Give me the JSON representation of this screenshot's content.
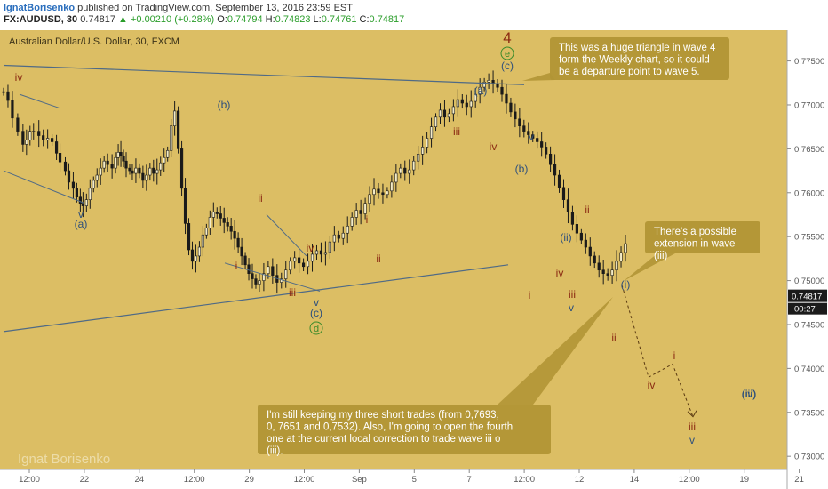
{
  "header": {
    "author": "IgnatBorisenko",
    "published": "published on TradingView.com, September 13, 2016 23:59 EST",
    "symbol": "FX:AUDUSD, 30",
    "last": "0.74817",
    "change": "+0.00210 (+0.28%)",
    "o_label": "O:",
    "o_value": "0.74794",
    "h_label": "H:",
    "h_value": "0.74823",
    "l_label": "L:",
    "l_value": "0.74761",
    "c_label": "C:",
    "c_value": "0.74817"
  },
  "colors": {
    "background": "#dcbe64",
    "candle": "#1a1a1a",
    "trendline": "#4f6a86",
    "callout_fill": "#b19535",
    "callout_text": "#ffffff",
    "wave_blue": "#2d4f7c",
    "wave_red": "#8b2a12",
    "wave_green": "#3a8a2a",
    "watermark": "#efe2b5"
  },
  "chart_data": {
    "type": "candlestick",
    "title": "Australian Dollar/U.S. Dollar, 30, FXCM",
    "xlabel": "",
    "ylabel": "",
    "x_tick_labels": [
      "12:00",
      "22",
      "24",
      "12:00",
      "29",
      "12:00",
      "Sep",
      "5",
      "7",
      "12:00",
      "12",
      "14",
      "12:00",
      "19",
      "21"
    ],
    "y_ticks": [
      0.73,
      0.735,
      0.74,
      0.745,
      0.75,
      0.755,
      0.76,
      0.765,
      0.77,
      0.775
    ],
    "y_tick_labels": [
      "0.73000",
      "0.73500",
      "0.74000",
      "0.74500",
      "0.75000",
      "0.75500",
      "0.76000",
      "0.76500",
      "0.77000",
      "0.77500"
    ],
    "ylim": [
      0.7285,
      0.7785
    ],
    "last_price_label": "0.74817",
    "countdown_label": "00:27",
    "price_path_x": [
      0,
      0.05,
      0.1,
      0.16,
      0.22,
      0.26,
      0.3,
      0.34,
      0.4,
      0.45,
      0.5,
      0.55,
      0.6,
      0.64,
      0.7,
      0.74,
      0.79,
      0.83,
      0.87,
      0.9,
      0.94,
      0.98,
      1.02,
      1.06,
      1.1,
      1.14,
      1.18,
      1.23,
      1.27,
      1.3,
      1.33,
      1.36,
      1.39,
      1.43,
      1.46,
      1.5,
      1.54,
      1.58,
      1.62,
      1.66,
      1.7,
      1.74,
      1.78,
      1.82,
      1.86,
      1.9,
      1.94,
      1.98,
      2.02,
      2.06,
      2.1,
      2.14,
      2.18,
      2.22,
      2.26,
      2.3,
      2.34,
      2.38,
      2.42,
      2.46,
      2.5,
      2.54,
      2.58,
      2.62,
      2.66,
      2.7,
      2.74,
      2.78,
      2.82,
      2.86,
      2.9,
      2.95,
      3.0,
      3.05,
      3.1,
      3.15,
      3.2,
      3.25,
      3.3,
      3.35,
      3.4,
      3.45,
      3.5,
      3.55,
      3.6,
      3.65,
      3.7,
      3.75,
      3.8,
      3.85,
      3.9,
      3.95,
      4.0,
      4.05,
      4.1,
      4.15,
      4.2,
      4.25,
      4.3,
      4.35,
      4.4,
      4.45,
      4.5,
      4.55,
      4.6,
      4.65,
      4.7,
      4.75,
      4.8,
      4.85,
      4.9,
      4.95,
      5.0,
      5.05,
      5.1,
      5.15,
      5.2,
      5.25,
      5.3,
      5.35,
      5.4,
      5.45,
      5.5,
      5.55,
      5.6,
      5.65,
      5.7,
      5.75,
      5.8,
      5.85,
      5.9,
      5.95,
      6.0,
      6.05,
      6.1,
      6.15,
      6.2,
      6.25,
      6.3,
      6.35,
      6.4,
      6.45,
      6.5,
      6.55,
      6.6,
      6.65,
      6.7,
      6.75,
      6.8,
      6.85,
      6.9,
      6.95,
      7.0,
      7.05,
      7.1,
      7.15,
      7.2,
      7.25,
      7.3,
      7.35,
      7.4,
      7.45,
      7.5,
      7.55,
      7.6,
      7.65,
      7.7,
      7.75,
      7.8,
      7.85,
      7.9,
      7.95,
      8.0,
      8.05,
      8.1,
      8.15,
      8.2,
      8.25,
      8.3,
      8.35,
      8.4,
      8.45,
      8.5,
      8.55,
      8.6,
      8.65,
      8.7,
      8.75,
      8.8,
      8.85,
      8.9,
      8.95,
      9.0,
      9.05,
      9.1,
      9.15,
      9.2,
      9.25,
      9.3,
      9.35,
      9.4,
      9.45,
      9.5,
      9.55,
      9.6,
      9.65,
      9.7,
      9.75,
      9.8
    ],
    "price_path_y": [
      0.7715,
      0.7705,
      0.7685,
      0.767,
      0.7655,
      0.766,
      0.767,
      0.767,
      0.7665,
      0.766,
      0.7662,
      0.7658,
      0.7645,
      0.7635,
      0.7625,
      0.7612,
      0.7605,
      0.7595,
      0.7588,
      0.7585,
      0.7592,
      0.7605,
      0.7614,
      0.762,
      0.7628,
      0.7636,
      0.7632,
      0.7628,
      0.764,
      0.7646,
      0.7642,
      0.7636,
      0.7628,
      0.7625,
      0.7622,
      0.7628,
      0.7622,
      0.7614,
      0.762,
      0.7628,
      0.7622,
      0.7626,
      0.7634,
      0.764,
      0.7648,
      0.7676,
      0.7693,
      0.765,
      0.7605,
      0.7565,
      0.7535,
      0.7522,
      0.7528,
      0.7538,
      0.7552,
      0.756,
      0.7572,
      0.7578,
      0.7576,
      0.7571,
      0.7566,
      0.7562,
      0.7556,
      0.7548,
      0.7538,
      0.7528,
      0.7518,
      0.7508,
      0.7502,
      0.7496,
      0.75,
      0.7508,
      0.7516,
      0.7506,
      0.7498,
      0.7502,
      0.7512,
      0.7522,
      0.7526,
      0.752,
      0.7516,
      0.7522,
      0.753,
      0.7534,
      0.753,
      0.7532,
      0.7544,
      0.7552,
      0.7548,
      0.7554,
      0.7562,
      0.7572,
      0.758,
      0.7576,
      0.7588,
      0.7598,
      0.7604,
      0.76,
      0.7598,
      0.7602,
      0.7612,
      0.7622,
      0.7628,
      0.7622,
      0.7626,
      0.7636,
      0.7644,
      0.7652,
      0.7662,
      0.7675,
      0.7686,
      0.7694,
      0.7686,
      0.769,
      0.7698,
      0.7706,
      0.7702,
      0.7698,
      0.7704,
      0.7712,
      0.772,
      0.7726,
      0.7728,
      0.7724,
      0.772,
      0.7712,
      0.7702,
      0.7692,
      0.7684,
      0.7676,
      0.767,
      0.7666,
      0.7662,
      0.7658,
      0.7652,
      0.7644,
      0.7632,
      0.762,
      0.7606,
      0.7592,
      0.7578,
      0.7564,
      0.7554,
      0.7546,
      0.7538,
      0.7528,
      0.752,
      0.7512,
      0.7508,
      0.7506,
      0.7512,
      0.7522,
      0.7532,
      0.7542,
      0.7552,
      0.756,
      0.7564,
      0.7562,
      0.7556,
      0.7548,
      0.7538,
      0.7526,
      0.7514,
      0.7502,
      0.749,
      0.7478,
      0.7468,
      0.746,
      0.7462,
      0.747,
      0.7476,
      0.7479,
      0.748,
      0.7481,
      0.7482,
      0.7482,
      0.7482,
      0.7482,
      0.7482,
      0.7482,
      0.7482,
      0.7482,
      0.7482,
      0.7482,
      0.7482,
      0.7482,
      0.7482,
      0.7482,
      0.7482,
      0.7482,
      0.7482,
      0.7482,
      0.7482,
      0.7482,
      0.7482,
      0.7482,
      0.7482,
      0.7482,
      0.7482,
      0.7482,
      0.7482,
      0.7482,
      0.7482,
      0.7482,
      0.7482,
      0.7482
    ],
    "projection_y": [
      0.7495,
      0.739,
      0.7405,
      0.7345
    ],
    "grid": false,
    "wave_labels": [
      {
        "text": "4",
        "color": "wave_red",
        "size": "large"
      },
      {
        "text": "e",
        "color": "wave_green",
        "circled": true
      },
      {
        "text": "(c)",
        "color": "wave_blue"
      },
      {
        "text": "iv",
        "color": "wave_red"
      },
      {
        "text": "v",
        "color": "wave_blue"
      },
      {
        "text": "(a)",
        "color": "wave_blue"
      },
      {
        "text": "(b)",
        "color": "wave_blue"
      },
      {
        "text": "ii",
        "color": "wave_red"
      },
      {
        "text": "i",
        "color": "wave_red"
      },
      {
        "text": "iv",
        "color": "wave_red"
      },
      {
        "text": "iii",
        "color": "wave_red"
      },
      {
        "text": "v",
        "color": "wave_blue"
      },
      {
        "text": "(c)",
        "color": "wave_blue"
      },
      {
        "text": "d",
        "color": "wave_green",
        "circled": true
      },
      {
        "text": "i",
        "color": "wave_red"
      },
      {
        "text": "ii",
        "color": "wave_red"
      },
      {
        "text": "iii",
        "color": "wave_red"
      },
      {
        "text": "(a)",
        "color": "wave_blue"
      },
      {
        "text": "iv",
        "color": "wave_red"
      },
      {
        "text": "v",
        "color": "wave_blue"
      },
      {
        "text": "(b)",
        "color": "wave_blue"
      },
      {
        "text": "ii",
        "color": "wave_red"
      },
      {
        "text": "i",
        "color": "wave_red"
      },
      {
        "text": "(ii)",
        "color": "wave_blue"
      },
      {
        "text": "iv",
        "color": "wave_red"
      },
      {
        "text": "iii",
        "color": "wave_red"
      },
      {
        "text": "v",
        "color": "wave_blue"
      },
      {
        "text": "(i)",
        "color": "wave_blue"
      },
      {
        "text": "ii",
        "color": "wave_red"
      },
      {
        "text": "i",
        "color": "wave_red"
      },
      {
        "text": "iv",
        "color": "wave_red"
      },
      {
        "text": "iii",
        "color": "wave_red"
      },
      {
        "text": "v",
        "color": "wave_blue"
      },
      {
        "text": "(iii)",
        "color": "wave_blue"
      },
      {
        "text": "(iv)",
        "color": "wave_blue"
      }
    ],
    "annotations": [
      "This was a huge triangle in wave 4 form the Weekly chart, so it could be a departure point to wave 5.",
      "There's a possible extension in wave (iii)",
      "I'm still keeping my three short trades (from 0,7693, 0, 7651 and 0,7532). Also, I'm going to open the fourth one at the current local correction to trade wave iii o (iii)."
    ],
    "watermark": "Ignat Borisenko"
  }
}
